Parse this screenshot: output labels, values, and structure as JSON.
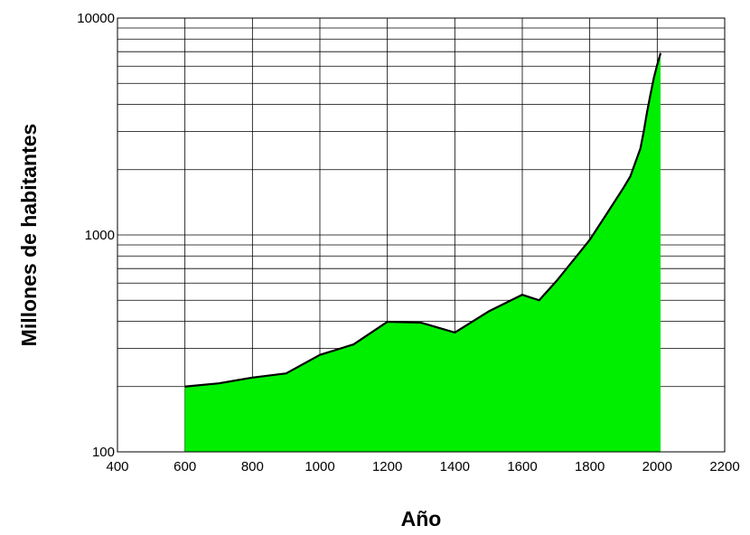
{
  "chart_data": {
    "type": "area",
    "title": "",
    "xlabel": "Año",
    "ylabel": "Millones de habitantes",
    "xlim": [
      400,
      2200
    ],
    "ylim": [
      100,
      10000
    ],
    "y_scale": "log",
    "x_ticks": [
      400,
      600,
      800,
      1000,
      1200,
      1400,
      1600,
      1800,
      2000,
      2200
    ],
    "y_tick_labels": [
      "100",
      "1000",
      "10000"
    ],
    "grid": true,
    "legend": "none",
    "colors": {
      "fill": "#00ee00",
      "line": "#000000",
      "grid": "#000000"
    },
    "series": [
      {
        "x": [
          600,
          700,
          800,
          900,
          1000,
          1100,
          1200,
          1300,
          1400,
          1500,
          1600,
          1650,
          1700,
          1750,
          1800,
          1850,
          1900,
          1920,
          1950,
          1960,
          1970,
          1980,
          1990,
          2000,
          2010
        ],
        "y": [
          200,
          207,
          220,
          230,
          280,
          313,
          398,
          394,
          355,
          444,
          530,
          500,
          610,
          760,
          950,
          1250,
          1650,
          1860,
          2500,
          3000,
          3700,
          4450,
          5300,
          6100,
          6900
        ]
      }
    ]
  }
}
